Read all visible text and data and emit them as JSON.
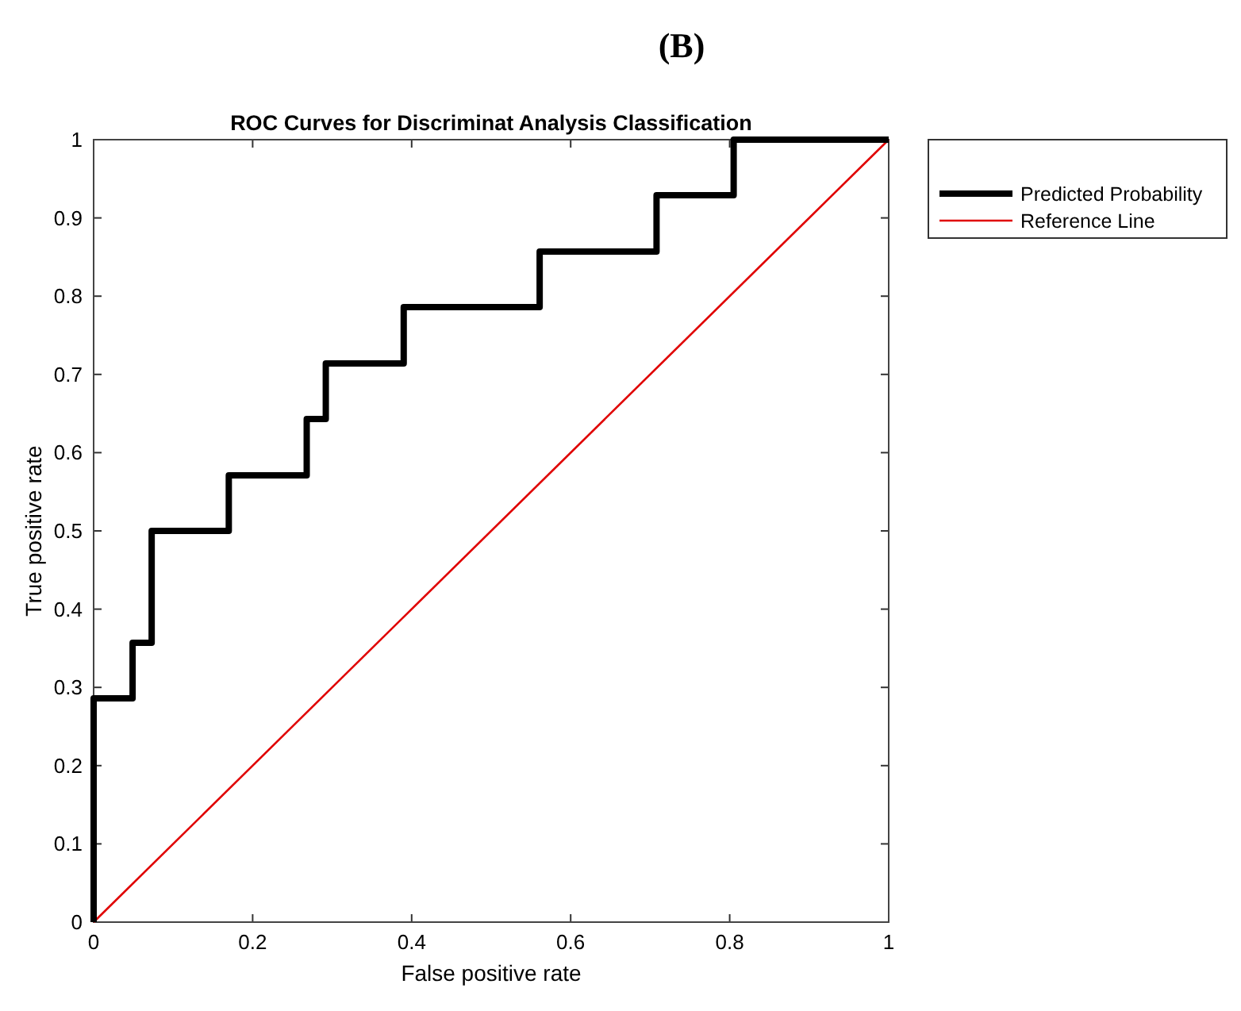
{
  "chart_data": {
    "type": "line",
    "title": "ROC Curves for Discriminat Analysis Classification",
    "xlabel": "False positive rate",
    "ylabel": "True positive rate",
    "annotations": [
      "(B)"
    ],
    "series": [
      {
        "name": "Predicted Probability",
        "type": "step",
        "color": "#000000",
        "x": [
          0,
          0,
          0.049,
          0.049,
          0.073,
          0.073,
          0.17,
          0.17,
          0.268,
          0.268,
          0.292,
          0.292,
          0.39,
          0.39,
          0.561,
          0.561,
          0.708,
          0.708,
          0.805,
          0.805,
          1
        ],
        "values": [
          0,
          0.286,
          0.286,
          0.357,
          0.357,
          0.5,
          0.5,
          0.571,
          0.571,
          0.643,
          0.643,
          0.714,
          0.714,
          0.786,
          0.786,
          0.857,
          0.857,
          0.929,
          0.929,
          1,
          1
        ]
      },
      {
        "name": "Reference Line",
        "type": "line",
        "color": "#e00000",
        "x": [
          0,
          1
        ],
        "values": [
          0,
          1
        ]
      }
    ],
    "xlim": [
      0,
      1
    ],
    "ylim": [
      0,
      1
    ],
    "xticks": [
      0,
      0.2,
      0.4,
      0.6,
      0.8,
      1
    ],
    "yticks": [
      0,
      0.1,
      0.2,
      0.3,
      0.4,
      0.5,
      0.6,
      0.7,
      0.8,
      0.9,
      1
    ],
    "grid": false,
    "legend": "top right",
    "marker": "none"
  }
}
